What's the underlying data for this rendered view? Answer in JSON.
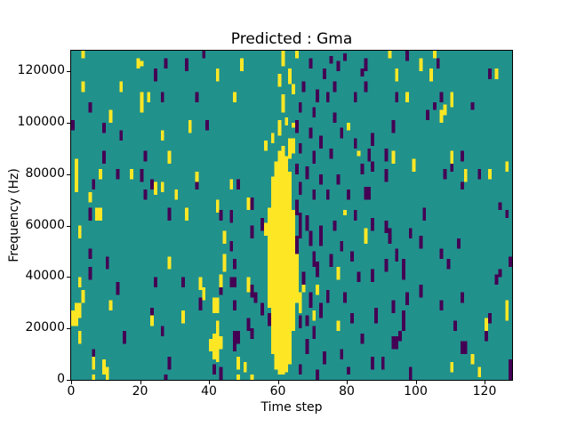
{
  "chart_data": {
    "type": "heatmap",
    "title": "Predicted : Gma",
    "xlabel": "Time step",
    "ylabel": "Frequency (Hz)",
    "legend": "none",
    "grid": {
      "cols": 128,
      "rows": 128
    },
    "x_range": [
      0,
      128
    ],
    "y_range": [
      0,
      128000
    ],
    "x_ticks": [
      0,
      20,
      40,
      60,
      80,
      100,
      120
    ],
    "y_ticks": [
      0,
      20000,
      40000,
      60000,
      80000,
      100000,
      120000
    ],
    "colors": {
      "background": "#21918c",
      "high": "#fde725",
      "low": "#440154"
    },
    "cells": {
      "note": "runs are [col, row_from_bottom, length]; one row = 1000 Hz",
      "yellow_runs": [
        [
          3,
          125,
          3
        ],
        [
          20,
          122,
          2
        ],
        [
          19,
          121,
          4
        ],
        [
          3,
          112,
          4
        ],
        [
          14,
          112,
          4
        ],
        [
          20,
          108,
          4
        ],
        [
          22,
          108,
          4
        ],
        [
          20,
          104,
          4
        ],
        [
          11,
          100,
          5
        ],
        [
          1,
          73,
          13
        ],
        [
          8,
          78,
          4
        ],
        [
          17,
          78,
          4
        ],
        [
          24,
          72,
          5
        ],
        [
          5,
          69,
          4
        ],
        [
          7,
          62,
          5
        ],
        [
          8,
          62,
          5
        ],
        [
          2,
          55,
          5
        ],
        [
          2,
          36,
          4
        ],
        [
          3,
          30,
          5
        ],
        [
          11,
          27,
          4
        ],
        [
          1,
          21,
          9
        ],
        [
          2,
          24,
          6
        ],
        [
          0,
          21,
          6
        ],
        [
          23,
          21,
          4
        ],
        [
          2,
          14,
          5
        ],
        [
          6,
          4,
          5
        ],
        [
          9,
          2,
          6
        ],
        [
          10,
          0,
          5
        ],
        [
          6,
          0,
          2
        ],
        [
          49,
          120,
          5
        ],
        [
          42,
          116,
          5
        ],
        [
          47,
          108,
          4
        ],
        [
          34,
          96,
          5
        ],
        [
          26,
          93,
          4
        ],
        [
          56,
          89,
          4
        ],
        [
          28,
          84,
          5
        ],
        [
          36,
          77,
          4
        ],
        [
          26,
          73,
          4
        ],
        [
          46,
          74,
          4
        ],
        [
          30,
          70,
          4
        ],
        [
          42,
          65,
          5
        ],
        [
          51,
          66,
          5
        ],
        [
          33,
          62,
          5
        ],
        [
          56,
          56,
          5
        ],
        [
          44,
          53,
          5
        ],
        [
          28,
          43,
          5
        ],
        [
          44,
          42,
          7
        ],
        [
          43,
          36,
          5
        ],
        [
          37,
          35,
          5
        ],
        [
          51,
          36,
          4
        ],
        [
          38,
          31,
          5
        ],
        [
          41,
          26,
          6
        ],
        [
          42,
          26,
          6
        ],
        [
          32,
          22,
          5
        ],
        [
          42,
          7,
          16
        ],
        [
          41,
          8,
          10
        ],
        [
          40,
          11,
          5
        ],
        [
          43,
          12,
          5
        ],
        [
          48,
          4,
          5
        ],
        [
          51,
          34,
          3
        ],
        [
          50,
          3,
          4
        ],
        [
          48,
          0,
          2
        ],
        [
          52,
          0,
          2
        ],
        [
          57,
          28,
          39
        ],
        [
          58,
          10,
          69
        ],
        [
          59,
          4,
          81
        ],
        [
          60,
          2,
          87
        ],
        [
          61,
          2,
          89
        ],
        [
          62,
          3,
          84
        ],
        [
          63,
          6,
          75
        ],
        [
          64,
          20,
          43
        ],
        [
          65,
          30,
          19
        ],
        [
          60,
          95,
          6
        ],
        [
          61,
          104,
          7
        ],
        [
          60,
          114,
          5
        ],
        [
          61,
          122,
          6
        ],
        [
          62,
          99,
          3
        ],
        [
          63,
          115,
          6
        ],
        [
          63,
          86,
          8
        ],
        [
          64,
          88,
          6
        ],
        [
          58,
          92,
          4
        ],
        [
          66,
          26,
          8
        ],
        [
          67,
          34,
          3
        ],
        [
          71,
          33,
          4
        ],
        [
          65,
          125,
          3
        ],
        [
          64,
          111,
          4
        ],
        [
          64,
          98,
          2
        ],
        [
          80,
          97,
          3
        ],
        [
          83,
          87,
          2
        ],
        [
          64,
          62,
          4
        ],
        [
          79,
          64,
          2
        ],
        [
          77,
          39,
          5
        ],
        [
          64,
          37,
          4
        ],
        [
          70,
          23,
          4
        ],
        [
          77,
          19,
          4
        ],
        [
          64,
          19,
          4
        ],
        [
          92,
          125,
          3
        ],
        [
          94,
          116,
          5
        ],
        [
          101,
          120,
          5
        ],
        [
          97,
          108,
          4
        ],
        [
          93,
          84,
          5
        ],
        [
          99,
          81,
          5
        ],
        [
          85,
          53,
          6
        ],
        [
          105,
          125,
          3
        ],
        [
          104,
          116,
          5
        ],
        [
          123,
          117,
          4
        ],
        [
          110,
          106,
          6
        ],
        [
          108,
          103,
          4
        ],
        [
          107,
          100,
          5
        ],
        [
          110,
          84,
          5
        ],
        [
          126,
          81,
          4
        ],
        [
          114,
          77,
          5
        ],
        [
          121,
          78,
          4
        ],
        [
          126,
          27,
          4
        ],
        [
          126,
          23,
          4
        ],
        [
          120,
          19,
          5
        ],
        [
          116,
          6,
          4
        ],
        [
          110,
          3,
          4
        ],
        [
          118,
          1,
          4
        ]
      ],
      "purple_runs": [
        [
          24,
          116,
          5
        ],
        [
          5,
          104,
          4
        ],
        [
          0,
          97,
          4
        ],
        [
          9,
          96,
          4
        ],
        [
          14,
          93,
          4
        ],
        [
          21,
          85,
          4
        ],
        [
          9,
          84,
          5
        ],
        [
          13,
          78,
          4
        ],
        [
          20,
          77,
          5
        ],
        [
          23,
          74,
          4
        ],
        [
          6,
          74,
          4
        ],
        [
          21,
          70,
          4
        ],
        [
          5,
          62,
          5
        ],
        [
          5,
          47,
          4
        ],
        [
          10,
          43,
          5
        ],
        [
          5,
          39,
          5
        ],
        [
          24,
          36,
          4
        ],
        [
          13,
          33,
          5
        ],
        [
          23,
          24,
          4
        ],
        [
          15,
          14,
          5
        ],
        [
          6,
          8,
          4
        ],
        [
          27,
          0,
          2
        ],
        [
          43,
          0,
          2
        ],
        [
          38,
          125,
          3
        ],
        [
          27,
          121,
          4
        ],
        [
          33,
          120,
          5
        ],
        [
          26,
          108,
          4
        ],
        [
          36,
          108,
          4
        ],
        [
          39,
          97,
          4
        ],
        [
          36,
          74,
          4
        ],
        [
          48,
          74,
          4
        ],
        [
          52,
          66,
          5
        ],
        [
          28,
          62,
          5
        ],
        [
          43,
          62,
          4
        ],
        [
          46,
          61,
          5
        ],
        [
          55,
          58,
          5
        ],
        [
          52,
          55,
          5
        ],
        [
          46,
          50,
          4
        ],
        [
          47,
          43,
          4
        ],
        [
          32,
          36,
          4
        ],
        [
          46,
          36,
          4
        ],
        [
          47,
          36,
          4
        ],
        [
          52,
          32,
          5
        ],
        [
          37,
          27,
          5
        ],
        [
          47,
          27,
          4
        ],
        [
          55,
          25,
          5
        ],
        [
          51,
          19,
          5
        ],
        [
          26,
          17,
          4
        ],
        [
          47,
          11,
          8
        ],
        [
          28,
          4,
          5
        ],
        [
          43,
          0,
          5
        ],
        [
          53,
          30,
          4
        ],
        [
          57,
          21,
          5
        ],
        [
          48,
          14,
          5
        ],
        [
          52,
          16,
          4
        ],
        [
          43,
          33,
          4
        ],
        [
          41,
          2,
          4
        ],
        [
          69,
          121,
          4
        ],
        [
          75,
          123,
          3
        ],
        [
          73,
          117,
          4
        ],
        [
          79,
          124,
          3
        ],
        [
          67,
          112,
          4
        ],
        [
          71,
          108,
          5
        ],
        [
          74,
          108,
          4
        ],
        [
          66,
          104,
          4
        ],
        [
          70,
          102,
          4
        ],
        [
          65,
          96,
          5
        ],
        [
          69,
          94,
          4
        ],
        [
          72,
          90,
          5
        ],
        [
          66,
          88,
          4
        ],
        [
          70,
          84,
          5
        ],
        [
          75,
          86,
          4
        ],
        [
          65,
          80,
          4
        ],
        [
          68,
          78,
          5
        ],
        [
          72,
          76,
          4
        ],
        [
          66,
          72,
          5
        ],
        [
          70,
          70,
          4
        ],
        [
          65,
          64,
          6
        ],
        [
          66,
          55,
          10
        ],
        [
          65,
          48,
          8
        ],
        [
          69,
          52,
          6
        ],
        [
          70,
          44,
          6
        ],
        [
          68,
          58,
          6
        ],
        [
          72,
          52,
          8
        ],
        [
          71,
          40,
          6
        ],
        [
          67,
          36,
          6
        ],
        [
          69,
          28,
          6
        ],
        [
          72,
          24,
          6
        ],
        [
          66,
          20,
          5
        ],
        [
          70,
          16,
          5
        ],
        [
          68,
          10,
          6
        ],
        [
          73,
          6,
          5
        ],
        [
          66,
          2,
          4
        ],
        [
          71,
          0,
          4
        ],
        [
          74,
          30,
          5
        ],
        [
          75,
          44,
          5
        ],
        [
          76,
          58,
          4
        ],
        [
          78,
          50,
          4
        ],
        [
          74,
          70,
          4
        ],
        [
          77,
          76,
          4
        ],
        [
          80,
          70,
          4
        ],
        [
          82,
          62,
          4
        ],
        [
          81,
          46,
          4
        ],
        [
          83,
          38,
          4
        ],
        [
          79,
          30,
          4
        ],
        [
          81,
          22,
          4
        ],
        [
          84,
          14,
          4
        ],
        [
          78,
          8,
          4
        ],
        [
          80,
          2,
          3
        ],
        [
          82,
          90,
          4
        ],
        [
          84,
          80,
          4
        ],
        [
          78,
          94,
          4
        ],
        [
          82,
          108,
          4
        ],
        [
          84,
          118,
          3
        ],
        [
          76,
          100,
          4
        ],
        [
          77,
          120,
          4
        ],
        [
          76,
          112,
          4
        ],
        [
          68,
          21,
          4
        ],
        [
          97,
          124,
          4
        ],
        [
          85,
          120,
          5
        ],
        [
          85,
          112,
          4
        ],
        [
          94,
          108,
          4
        ],
        [
          103,
          101,
          4
        ],
        [
          93,
          96,
          5
        ],
        [
          87,
          91,
          5
        ],
        [
          86,
          85,
          5
        ],
        [
          91,
          85,
          5
        ],
        [
          87,
          81,
          4
        ],
        [
          91,
          77,
          5
        ],
        [
          85,
          70,
          5
        ],
        [
          86,
          70,
          5
        ],
        [
          102,
          62,
          5
        ],
        [
          87,
          58,
          5
        ],
        [
          91,
          57,
          5
        ],
        [
          92,
          53,
          6
        ],
        [
          98,
          55,
          4
        ],
        [
          101,
          51,
          5
        ],
        [
          94,
          46,
          5
        ],
        [
          91,
          42,
          5
        ],
        [
          96,
          39,
          8
        ],
        [
          87,
          38,
          5
        ],
        [
          101,
          32,
          5
        ],
        [
          97,
          29,
          5
        ],
        [
          93,
          26,
          5
        ],
        [
          88,
          22,
          6
        ],
        [
          96,
          23,
          4
        ],
        [
          96,
          19,
          5
        ],
        [
          95,
          15,
          4
        ],
        [
          93,
          12,
          5
        ],
        [
          94,
          12,
          5
        ],
        [
          87,
          4,
          5
        ],
        [
          90,
          4,
          5
        ],
        [
          98,
          0,
          5
        ],
        [
          106,
          121,
          4
        ],
        [
          121,
          117,
          4
        ],
        [
          107,
          108,
          4
        ],
        [
          105,
          105,
          3
        ],
        [
          116,
          105,
          3
        ],
        [
          103,
          102,
          3
        ],
        [
          113,
          85,
          4
        ],
        [
          110,
          81,
          4
        ],
        [
          108,
          78,
          4
        ],
        [
          118,
          78,
          4
        ],
        [
          113,
          74,
          3
        ],
        [
          124,
          66,
          3
        ],
        [
          126,
          63,
          3
        ],
        [
          112,
          51,
          4
        ],
        [
          107,
          47,
          4
        ],
        [
          109,
          43,
          4
        ],
        [
          127,
          44,
          4
        ],
        [
          124,
          40,
          3
        ],
        [
          123,
          37,
          4
        ],
        [
          113,
          30,
          4
        ],
        [
          107,
          27,
          4
        ],
        [
          121,
          22,
          4
        ],
        [
          111,
          19,
          4
        ],
        [
          120,
          15,
          4
        ],
        [
          113,
          10,
          5
        ],
        [
          114,
          10,
          5
        ],
        [
          127,
          0,
          8
        ]
      ]
    }
  }
}
